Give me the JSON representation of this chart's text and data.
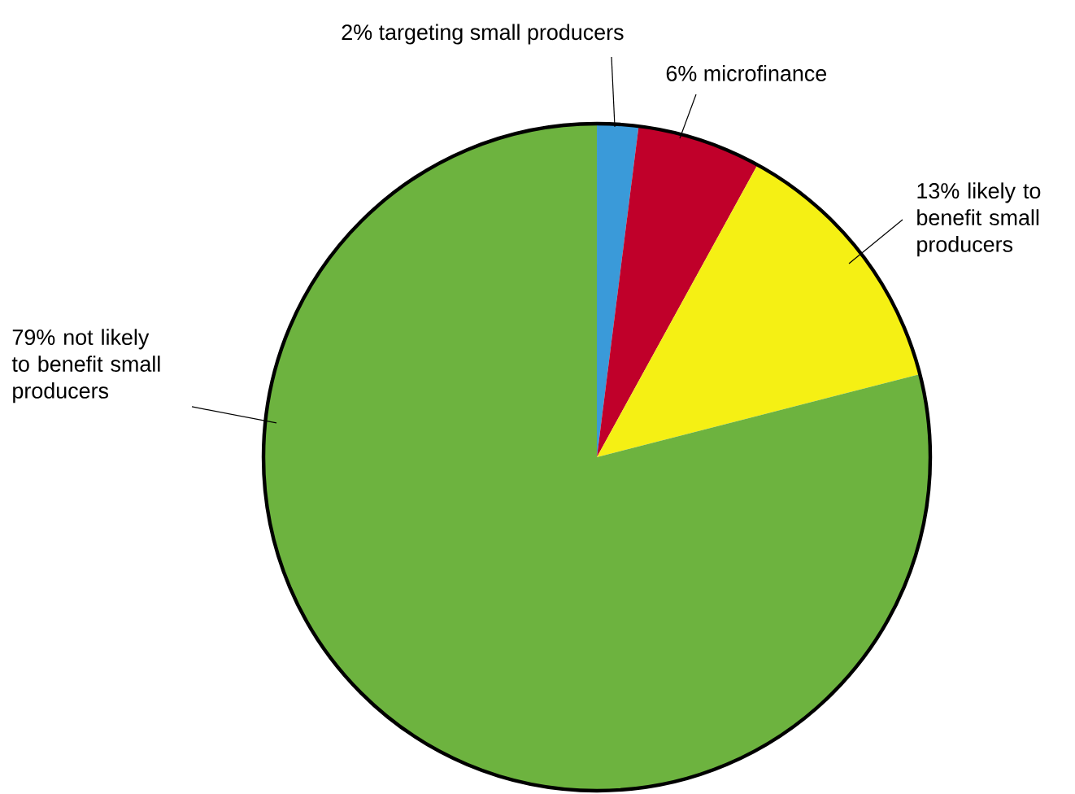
{
  "chart_data": {
    "type": "pie",
    "categories": [
      "targeting small producers",
      "microfinance",
      "likely to benefit small producers",
      "not likely to benefit small producers"
    ],
    "values": [
      2,
      6,
      13,
      79
    ],
    "value_labels": [
      "2%",
      "6%",
      "13%",
      "79%"
    ],
    "colors": [
      "#3a9ad9",
      "#c0002a",
      "#f5f014",
      "#6db33f"
    ]
  }
}
